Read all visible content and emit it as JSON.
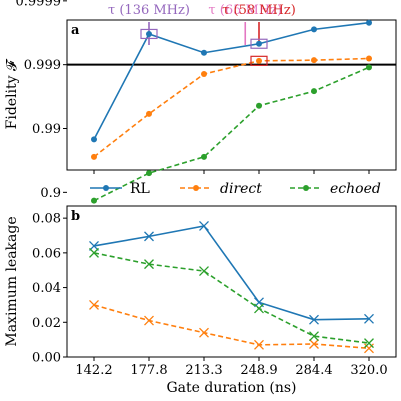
{
  "chart_data": [
    {
      "panel_label": "a",
      "type": "line",
      "ylabel": "Fidelity 𝓕",
      "yscale": "log-infidelity",
      "y_ticks": [
        "0.9999",
        "0.999",
        "0.99",
        "0.9"
      ],
      "y_tick_values": [
        0.9999,
        0.999,
        0.99,
        0.9
      ],
      "categories": [
        "142.2",
        "177.8",
        "213.3",
        "248.9",
        "284.4",
        "320.0"
      ],
      "threshold": 0.999,
      "series": [
        {
          "name": "RL",
          "color": "#1f77b4",
          "style": "solid",
          "marker": "circle",
          "values": [
            0.9852,
            0.99967,
            0.99935,
            0.99953,
            0.99972,
            0.99978
          ]
        },
        {
          "name": "direct",
          "color": "#ff7f0e",
          "style": "dashed",
          "marker": "circle",
          "values": [
            0.9722,
            0.9941,
            0.9986,
            0.99913,
            0.99915,
            0.9992
          ]
        },
        {
          "name": "echoed",
          "color": "#2ca02c",
          "style": "dashed",
          "marker": "circle",
          "values": [
            0.865,
            0.95,
            0.9722,
            0.9956,
            0.9974,
            0.9989
          ]
        }
      ],
      "highlight_boxes": [
        {
          "x": "177.8",
          "value": 0.99967,
          "color": "#9467bd"
        },
        {
          "x": "248.9",
          "value": 0.99953,
          "color": "#9467bd"
        },
        {
          "x": "248.9",
          "value": 0.99913,
          "color": "#d62728"
        }
      ],
      "annotations": [
        {
          "label": "τ (136 MHz)",
          "x_position": 1.0,
          "color": "#9467bd"
        },
        {
          "label": "τ (65 MHz)",
          "x_position": 2.75,
          "color": "#e377c2"
        },
        {
          "label": "τ (58 MHz)",
          "x_position": 3.0,
          "color": "#d62728"
        }
      ]
    },
    {
      "panel_label": "b",
      "type": "line",
      "xlabel": "Gate duration (ns)",
      "ylabel": "Maximum leakage",
      "ylim": [
        0.0,
        0.087
      ],
      "y_ticks": [
        "0.00",
        "0.02",
        "0.04",
        "0.06",
        "0.08"
      ],
      "y_tick_values": [
        0.0,
        0.02,
        0.04,
        0.06,
        0.08
      ],
      "categories": [
        "142.2",
        "177.8",
        "213.3",
        "248.9",
        "284.4",
        "320.0"
      ],
      "series": [
        {
          "name": "RL",
          "color": "#1f77b4",
          "style": "solid",
          "marker": "x",
          "values": [
            0.064,
            0.0695,
            0.0755,
            0.0315,
            0.0215,
            0.022
          ]
        },
        {
          "name": "direct",
          "color": "#ff7f0e",
          "style": "dashed",
          "marker": "x",
          "values": [
            0.03,
            0.021,
            0.014,
            0.007,
            0.0075,
            0.005
          ]
        },
        {
          "name": "echoed",
          "color": "#2ca02c",
          "style": "dashed",
          "marker": "x",
          "values": [
            0.06,
            0.0535,
            0.0495,
            0.028,
            0.012,
            0.008
          ]
        }
      ]
    }
  ],
  "legend": [
    {
      "name": "RL",
      "color": "#1f77b4",
      "style": "solid",
      "italic": false
    },
    {
      "name": "direct",
      "color": "#ff7f0e",
      "style": "dashed",
      "italic": true
    },
    {
      "name": "echoed",
      "color": "#2ca02c",
      "style": "dashed",
      "italic": true
    }
  ]
}
